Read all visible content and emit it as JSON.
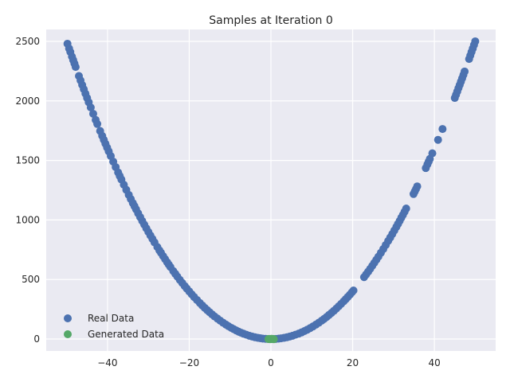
{
  "chart_data": {
    "type": "scatter",
    "title": "Samples at Iteration 0",
    "xlabel": "",
    "ylabel": "",
    "xlim": [
      -55,
      55
    ],
    "ylim": [
      -100,
      2600
    ],
    "xticks": [
      -40,
      -20,
      0,
      20,
      40
    ],
    "yticks": [
      0,
      500,
      1000,
      1500,
      2000,
      2500
    ],
    "xtick_labels": [
      "−40",
      "−20",
      "0",
      "20",
      "40"
    ],
    "ytick_labels": [
      "0",
      "500",
      "1000",
      "1500",
      "2000",
      "2500"
    ],
    "grid": true,
    "legend_position": "lower-left",
    "series": [
      {
        "name": "Real Data",
        "color": "#4c72b0",
        "points": [
          [
            -49.8,
            2480
          ],
          [
            -49.4,
            2440
          ],
          [
            -49.1,
            2411
          ],
          [
            -48.7,
            2372
          ],
          [
            -48.4,
            2343
          ],
          [
            -48.1,
            2314
          ],
          [
            -47.8,
            2285
          ],
          [
            -47.0,
            2209
          ],
          [
            -46.6,
            2172
          ],
          [
            -46.2,
            2134
          ],
          [
            -45.8,
            2098
          ],
          [
            -45.4,
            2061
          ],
          [
            -45.0,
            2025
          ],
          [
            -44.6,
            1989
          ],
          [
            -44.1,
            1945
          ],
          [
            -43.5,
            1892
          ],
          [
            -42.9,
            1840
          ],
          [
            -42.5,
            1806
          ],
          [
            -41.8,
            1747
          ],
          [
            -41.3,
            1706
          ],
          [
            -40.9,
            1673
          ],
          [
            -40.5,
            1640
          ],
          [
            -40.1,
            1608
          ],
          [
            -39.7,
            1576
          ],
          [
            -39.2,
            1537
          ],
          [
            -38.6,
            1490
          ],
          [
            -38.0,
            1444
          ],
          [
            -37.4,
            1399
          ],
          [
            -37.0,
            1369
          ],
          [
            -36.6,
            1340
          ],
          [
            -36.0,
            1296
          ],
          [
            -35.4,
            1253
          ],
          [
            -34.8,
            1211
          ],
          [
            -34.3,
            1176
          ],
          [
            -33.8,
            1142
          ],
          [
            -33.4,
            1116
          ],
          [
            -33.0,
            1089
          ],
          [
            -32.5,
            1056
          ],
          [
            -32.0,
            1024
          ],
          [
            -31.5,
            992
          ],
          [
            -31.0,
            961
          ],
          [
            -30.5,
            930
          ],
          [
            -30.0,
            900
          ],
          [
            -29.5,
            870
          ],
          [
            -29.0,
            841
          ],
          [
            -28.5,
            812
          ],
          [
            -27.8,
            773
          ],
          [
            -27.3,
            745
          ],
          [
            -26.9,
            724
          ],
          [
            -26.4,
            697
          ],
          [
            -25.9,
            671
          ],
          [
            -25.4,
            645
          ],
          [
            -25.0,
            625
          ],
          [
            -24.6,
            605
          ],
          [
            -23.9,
            571
          ],
          [
            -23.4,
            548
          ],
          [
            -22.9,
            524
          ],
          [
            -22.3,
            497
          ],
          [
            -21.7,
            471
          ],
          [
            -21.1,
            445
          ],
          [
            -20.6,
            424
          ],
          [
            -20.0,
            400
          ],
          [
            -19.4,
            376
          ],
          [
            -18.8,
            353
          ],
          [
            -18.1,
            328
          ],
          [
            -17.4,
            303
          ],
          [
            -16.8,
            282
          ],
          [
            -16.2,
            262
          ],
          [
            -15.6,
            243
          ],
          [
            -15.0,
            225
          ],
          [
            -14.4,
            207
          ],
          [
            -13.8,
            190
          ],
          [
            -13.1,
            172
          ],
          [
            -12.4,
            154
          ],
          [
            -11.7,
            137
          ],
          [
            -11.0,
            121
          ],
          [
            -10.4,
            108
          ],
          [
            -9.7,
            94
          ],
          [
            -9.1,
            83
          ],
          [
            -8.5,
            72
          ],
          [
            -7.9,
            62
          ],
          [
            -7.3,
            53
          ],
          [
            -6.7,
            45
          ],
          [
            -6.0,
            36
          ],
          [
            -5.3,
            28
          ],
          [
            -4.6,
            21
          ],
          [
            -3.9,
            15
          ],
          [
            -3.2,
            10
          ],
          [
            -2.6,
            7
          ],
          [
            -2.0,
            4
          ],
          [
            -1.3,
            2
          ],
          [
            -0.7,
            0
          ],
          [
            0.0,
            0
          ],
          [
            0.6,
            0
          ],
          [
            1.2,
            1
          ],
          [
            1.9,
            4
          ],
          [
            2.5,
            6
          ],
          [
            3.2,
            10
          ],
          [
            3.9,
            15
          ],
          [
            4.6,
            21
          ],
          [
            5.3,
            28
          ],
          [
            6.0,
            36
          ],
          [
            6.8,
            46
          ],
          [
            7.5,
            56
          ],
          [
            8.2,
            67
          ],
          [
            8.9,
            79
          ],
          [
            9.6,
            92
          ],
          [
            10.3,
            106
          ],
          [
            11.0,
            121
          ],
          [
            11.7,
            137
          ],
          [
            12.4,
            154
          ],
          [
            13.0,
            169
          ],
          [
            13.6,
            185
          ],
          [
            14.2,
            202
          ],
          [
            14.8,
            219
          ],
          [
            15.4,
            237
          ],
          [
            16.0,
            256
          ],
          [
            16.6,
            276
          ],
          [
            17.2,
            296
          ],
          [
            17.8,
            317
          ],
          [
            18.3,
            335
          ],
          [
            18.8,
            353
          ],
          [
            19.3,
            372
          ],
          [
            19.8,
            392
          ],
          [
            20.2,
            408
          ],
          [
            22.8,
            520
          ],
          [
            23.3,
            543
          ],
          [
            23.8,
            566
          ],
          [
            24.3,
            590
          ],
          [
            24.8,
            615
          ],
          [
            25.3,
            640
          ],
          [
            25.8,
            666
          ],
          [
            26.3,
            692
          ],
          [
            26.9,
            724
          ],
          [
            27.5,
            756
          ],
          [
            28.1,
            790
          ],
          [
            28.7,
            824
          ],
          [
            29.2,
            853
          ],
          [
            29.7,
            882
          ],
          [
            30.2,
            912
          ],
          [
            30.7,
            942
          ],
          [
            31.1,
            967
          ],
          [
            31.5,
            992
          ],
          [
            31.9,
            1018
          ],
          [
            32.3,
            1043
          ],
          [
            32.7,
            1069
          ],
          [
            33.1,
            1096
          ],
          [
            34.9,
            1218
          ],
          [
            35.2,
            1239
          ],
          [
            35.5,
            1260
          ],
          [
            35.8,
            1282
          ],
          [
            37.9,
            1436
          ],
          [
            38.3,
            1467
          ],
          [
            38.6,
            1490
          ],
          [
            38.9,
            1513
          ],
          [
            39.5,
            1560
          ],
          [
            40.9,
            1673
          ],
          [
            42.0,
            1764
          ],
          [
            45.0,
            2025
          ],
          [
            45.3,
            2052
          ],
          [
            45.6,
            2079
          ],
          [
            45.9,
            2107
          ],
          [
            46.2,
            2134
          ],
          [
            46.5,
            2162
          ],
          [
            46.8,
            2190
          ],
          [
            47.1,
            2218
          ],
          [
            47.4,
            2247
          ],
          [
            48.5,
            2352
          ],
          [
            48.8,
            2381
          ],
          [
            49.1,
            2411
          ],
          [
            49.4,
            2440
          ],
          [
            49.7,
            2470
          ],
          [
            50.0,
            2500
          ]
        ]
      },
      {
        "name": "Generated Data",
        "color": "#55a868",
        "points": [
          [
            -0.6,
            0
          ],
          [
            -0.4,
            1
          ],
          [
            -0.2,
            -1
          ],
          [
            0.0,
            0
          ],
          [
            0.1,
            2
          ],
          [
            0.3,
            0
          ],
          [
            0.5,
            1
          ],
          [
            0.7,
            -1
          ],
          [
            -0.1,
            0
          ],
          [
            0.2,
            1
          ]
        ]
      }
    ]
  }
}
